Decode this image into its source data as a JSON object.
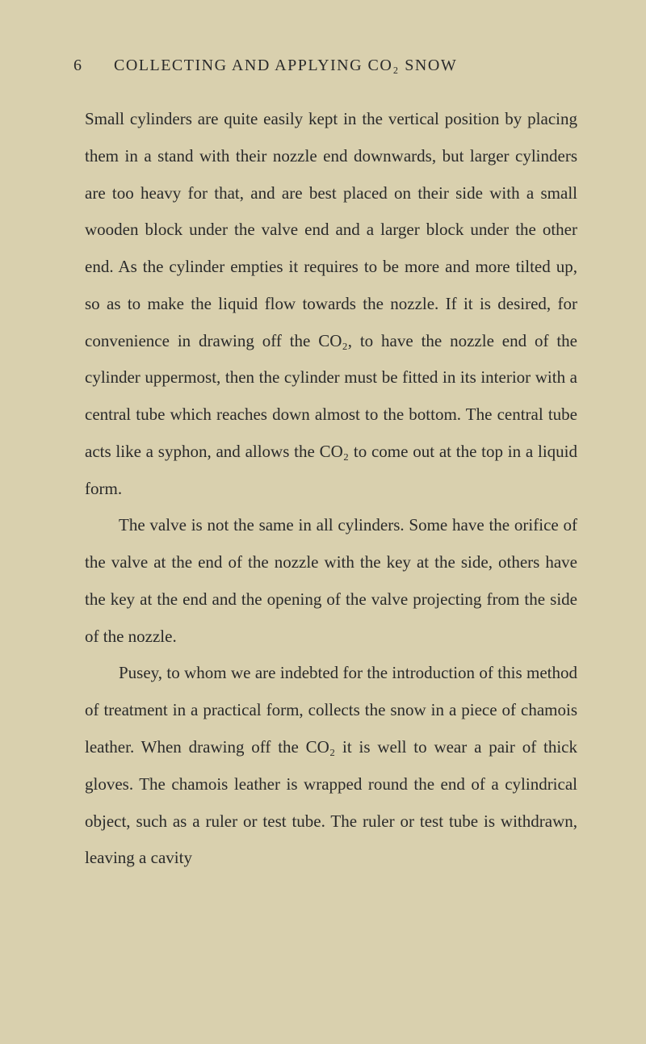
{
  "page": {
    "number": "6",
    "headerTitle": "COLLECTING AND APPLYING CO₂ SNOW",
    "paragraphs": [
      {
        "text": "Small cylinders are quite easily kept in the vertical position by placing them in a stand with their nozzle end downwards, but larger cylinders are too heavy for that, and are best placed on their side with a small wooden block under the valve end and a larger block under the other end. As the cylinder empties it requires to be more and more tilted up, so as to make the liquid flow towards the nozzle. If it is desired, for convenience in drawing off the CO₂, to have the nozzle end of the cylinder uppermost, then the cylinder must be fitted in its interior with a central tube which reaches down almost to the bottom. The central tube acts like a syphon, and allows the CO₂ to come out at the top in a liquid form.",
        "indent": false
      },
      {
        "text": "The valve is not the same in all cylinders. Some have the orifice of the valve at the end of the nozzle with the key at the side, others have the key at the end and the opening of the valve projecting from the side of the nozzle.",
        "indent": true
      },
      {
        "text": "Pusey, to whom we are indebted for the introduction of this method of treatment in a practical form, collects the snow in a piece of chamois leather. When drawing off the CO₂ it is well to wear a pair of thick gloves. The chamois leather is wrapped round the end of a cylindrical object, such as a ruler or test tube. The ruler or test tube is withdrawn, leaving a cavity",
        "indent": true
      }
    ]
  },
  "styling": {
    "backgroundColor": "#d9d0ae",
    "textColor": "#2a2a2a",
    "bodyFontSize": 21,
    "headerFontSize": 20,
    "lineHeight": 2.18,
    "pageWidth": 800,
    "pageHeight": 1293
  }
}
